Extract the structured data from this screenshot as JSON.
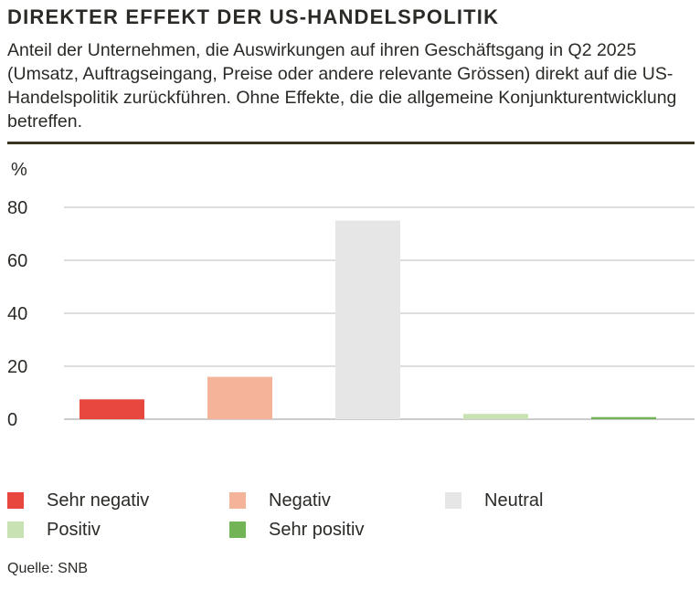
{
  "title": "DIREKTER EFFEKT DER US-HANDELSPOLITIK",
  "subtitle": "Anteil der Unternehmen, die Auswirkungen auf ihren Geschäftsgang in Q2 2025 (Umsatz, Auftragseingang, Preise oder andere relevante Grössen) direkt auf die US-Handelspolitik zurückführen. Ohne Effekte, die die allgemeine Konjunkturentwicklung betreffen.",
  "source": "Quelle: SNB",
  "chart_data": {
    "type": "bar",
    "title": "DIREKTER EFFEKT DER US-HANDELSPOLITIK",
    "ylabel": "%",
    "xlabel": "",
    "ylim": [
      0,
      80
    ],
    "yticks": [
      0,
      20,
      40,
      60,
      80
    ],
    "grid": true,
    "legend_position": "bottom",
    "categories": [
      "Sehr negativ",
      "Negativ",
      "Neutral",
      "Positiv",
      "Sehr positiv"
    ],
    "values": [
      7.5,
      16,
      75,
      2,
      0.8
    ],
    "colors": [
      "#e8473f",
      "#f5b49a",
      "#e6e6e6",
      "#c8e2b4",
      "#72b356"
    ]
  }
}
